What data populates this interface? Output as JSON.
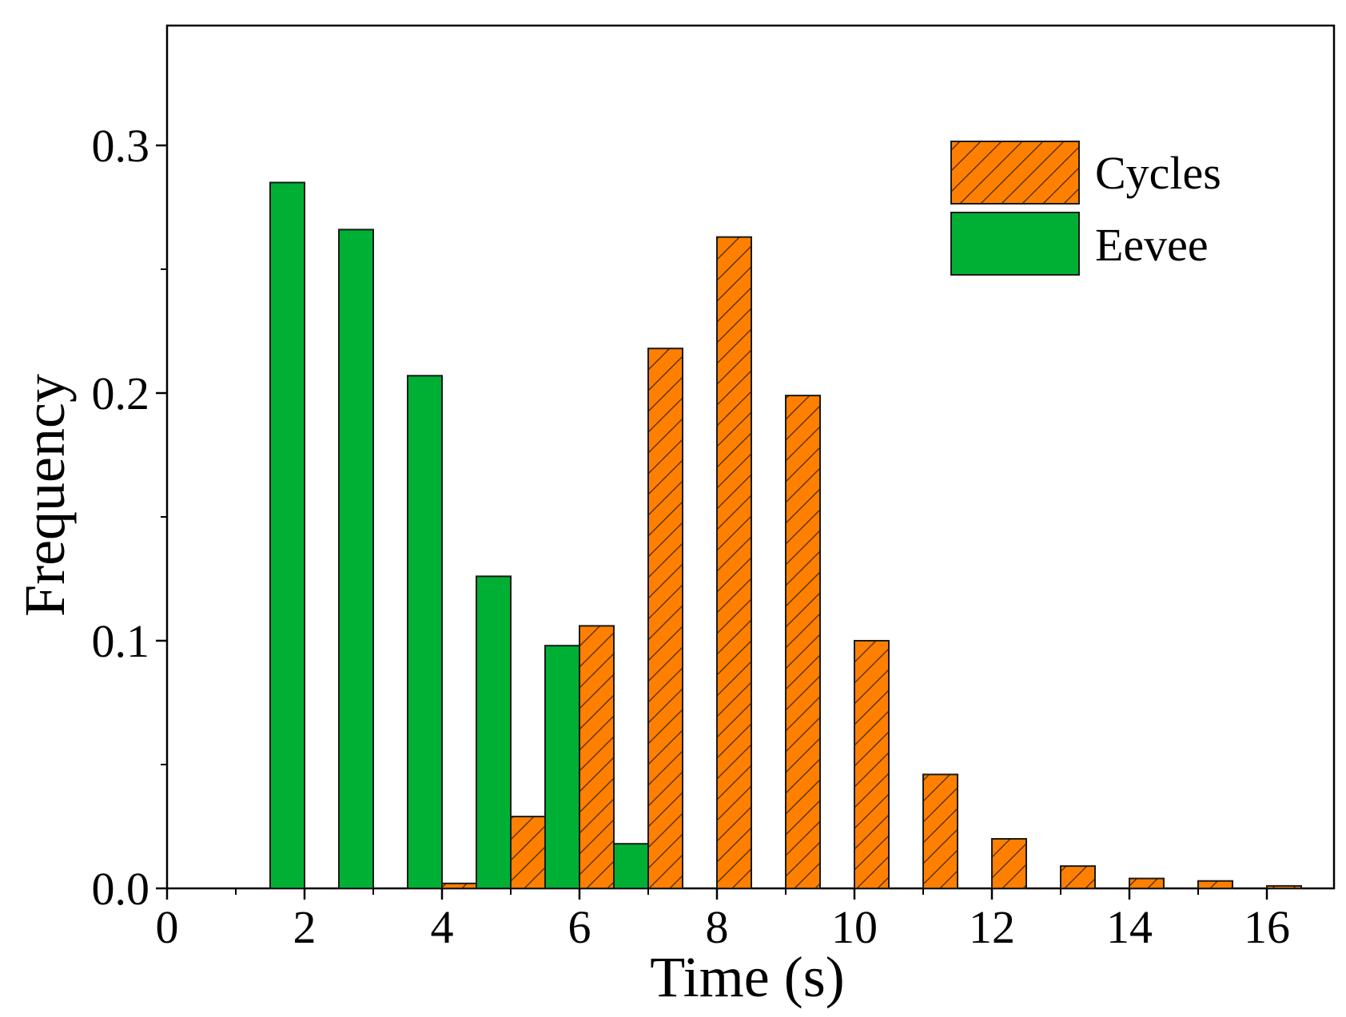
{
  "chart_data": {
    "type": "bar",
    "title": "",
    "xlabel": "Time (s)",
    "ylabel": "Frequency",
    "xlim": [
      0,
      17
    ],
    "ylim": [
      0,
      0.35
    ],
    "xticks": [
      0,
      2,
      4,
      6,
      8,
      10,
      12,
      14,
      16
    ],
    "xtick_labels": [
      "0",
      "2",
      "4",
      "6",
      "8",
      "10",
      "12",
      "14",
      "16"
    ],
    "yticks": [
      0.0,
      0.1,
      0.2,
      0.3
    ],
    "ytick_labels": [
      "0.0",
      "0.1",
      "0.2",
      "0.3"
    ],
    "bin_width": 0.5,
    "grid": false,
    "legend_position": "top-right",
    "series": [
      {
        "name": "Cycles",
        "color": "#ff8000",
        "pattern": "diagonal-hatch",
        "bars": [
          {
            "x": 4,
            "value": 0.002
          },
          {
            "x": 5,
            "value": 0.029
          },
          {
            "x": 6,
            "value": 0.106
          },
          {
            "x": 7,
            "value": 0.218
          },
          {
            "x": 8,
            "value": 0.263
          },
          {
            "x": 9,
            "value": 0.199
          },
          {
            "x": 10,
            "value": 0.1
          },
          {
            "x": 11,
            "value": 0.046
          },
          {
            "x": 12,
            "value": 0.02
          },
          {
            "x": 13,
            "value": 0.009
          },
          {
            "x": 14,
            "value": 0.004
          },
          {
            "x": 15,
            "value": 0.003
          },
          {
            "x": 16,
            "value": 0.001
          }
        ]
      },
      {
        "name": "Eevee",
        "color": "#00b035",
        "pattern": "solid",
        "bars": [
          {
            "x": 1.5,
            "value": 0.285
          },
          {
            "x": 2.5,
            "value": 0.266
          },
          {
            "x": 3.5,
            "value": 0.207
          },
          {
            "x": 4.5,
            "value": 0.126
          },
          {
            "x": 5.5,
            "value": 0.098
          },
          {
            "x": 6.5,
            "value": 0.018
          }
        ]
      }
    ]
  }
}
